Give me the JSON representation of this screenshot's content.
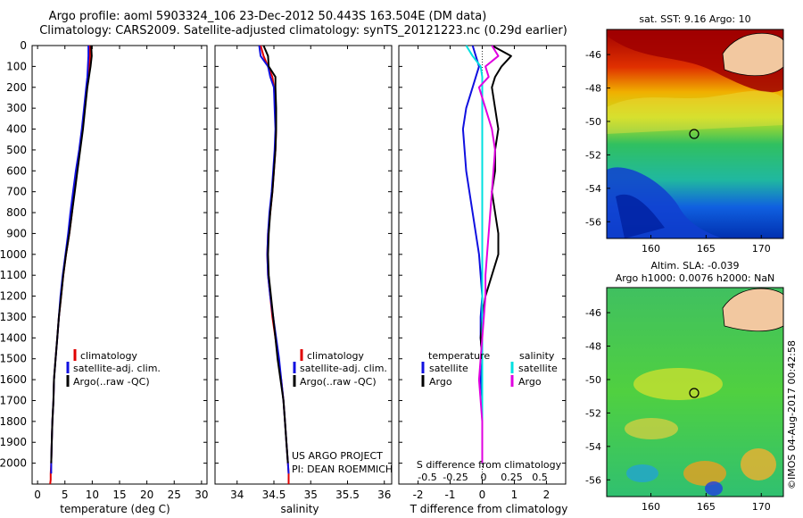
{
  "header": {
    "line1": "Argo profile: aoml 5903324_106 23-Dec-2012 50.443S 163.504E (DM data)",
    "line2": "Climatology: CARS2009. Satellite-adjusted climatology: synTS_20121223.nc (0.29d earlier)"
  },
  "colors": {
    "climatology": "#e00000",
    "satellite": "#1010e0",
    "argo": "#000000",
    "sal_satellite": "#00e0e0",
    "sal_argo": "#e000e0"
  },
  "chart_data": [
    {
      "id": "temperature",
      "type": "line",
      "xlabel": "temperature (deg C)",
      "ylabel": "",
      "xlim": [
        -1,
        31
      ],
      "ylim": [
        2100,
        0
      ],
      "xticks": [
        0,
        5,
        10,
        15,
        20,
        25,
        30
      ],
      "yticks": [
        0,
        100,
        200,
        300,
        400,
        500,
        600,
        700,
        800,
        900,
        1000,
        1100,
        1200,
        1300,
        1400,
        1500,
        1600,
        1700,
        1800,
        1900,
        2000
      ],
      "legend": [
        "climatology",
        "satellite-adj. clim.",
        "Argo(..raw -QC)"
      ],
      "series": [
        {
          "name": "climatology",
          "color": "#e00000",
          "x": [
            9.6,
            9.6,
            9.5,
            9.3,
            9.0,
            8.6,
            8.2,
            7.7,
            7.2,
            6.7,
            6.3,
            5.8,
            5.2,
            4.7,
            4.3,
            3.9,
            3.6,
            3.3,
            3.0,
            2.9,
            2.7,
            2.6,
            2.5,
            2.4,
            2.4,
            2.3
          ],
          "y": [
            0,
            50,
            100,
            150,
            200,
            300,
            400,
            500,
            600,
            700,
            800,
            900,
            1000,
            1100,
            1200,
            1300,
            1400,
            1500,
            1600,
            1700,
            1800,
            1900,
            2000,
            2050,
            2080,
            2100
          ]
        },
        {
          "name": "satellite-adj. clim.",
          "color": "#1010e0",
          "x": [
            9.3,
            9.3,
            9.2,
            9.1,
            8.9,
            8.5,
            8.1,
            7.6,
            7.0,
            6.5,
            6.0,
            5.6,
            5.1,
            4.6,
            4.2,
            3.9,
            3.6,
            3.3,
            3.0,
            2.9,
            2.7,
            2.6,
            2.5,
            2.5
          ],
          "y": [
            0,
            50,
            100,
            150,
            200,
            300,
            400,
            500,
            600,
            700,
            800,
            900,
            1000,
            1100,
            1200,
            1300,
            1400,
            1500,
            1600,
            1700,
            1800,
            1900,
            2000,
            2050
          ]
        },
        {
          "name": "Argo(..raw -QC)",
          "color": "#000000",
          "x": [
            9.8,
            9.9,
            9.7,
            9.4,
            9.1,
            8.7,
            8.3,
            7.8,
            7.3,
            6.8,
            6.3,
            5.8,
            5.2,
            4.7,
            4.3,
            3.9,
            3.6,
            3.3,
            3.0,
            2.9,
            2.7,
            2.6,
            2.5
          ],
          "y": [
            0,
            50,
            100,
            150,
            200,
            300,
            400,
            500,
            600,
            700,
            800,
            900,
            1000,
            1100,
            1200,
            1300,
            1400,
            1500,
            1600,
            1700,
            1800,
            1900,
            2000
          ]
        }
      ]
    },
    {
      "id": "salinity",
      "type": "line",
      "xlabel": "salinity",
      "ylabel": "",
      "xlim": [
        33.7,
        36.1
      ],
      "ylim": [
        2100,
        0
      ],
      "xticks": [
        34,
        34.5,
        35,
        35.5,
        36
      ],
      "legend": [
        "climatology",
        "satellite-adj. clim.",
        "Argo(..raw -QC)"
      ],
      "annotation": [
        "US ARGO PROJECT",
        "PI: DEAN ROEMMICH"
      ],
      "series": [
        {
          "name": "climatology",
          "color": "#e00000",
          "x": [
            34.32,
            34.36,
            34.42,
            34.48,
            34.5,
            34.52,
            34.53,
            34.52,
            34.5,
            34.48,
            34.45,
            34.42,
            34.41,
            34.42,
            34.45,
            34.48,
            34.52,
            34.56,
            34.6,
            34.63,
            34.65,
            34.67,
            34.69,
            34.7,
            34.7
          ],
          "y": [
            0,
            50,
            100,
            150,
            200,
            300,
            400,
            500,
            600,
            700,
            800,
            900,
            1000,
            1100,
            1200,
            1300,
            1400,
            1500,
            1600,
            1700,
            1800,
            1900,
            2000,
            2050,
            2100
          ]
        },
        {
          "name": "satellite-adj. clim.",
          "color": "#1010e0",
          "x": [
            34.3,
            34.32,
            34.42,
            34.45,
            34.5,
            34.51,
            34.52,
            34.51,
            34.49,
            34.47,
            34.44,
            34.42,
            34.41,
            34.42,
            34.45,
            34.49,
            34.53,
            34.57,
            34.6,
            34.63,
            34.65,
            34.67,
            34.69,
            34.7
          ],
          "y": [
            0,
            50,
            100,
            150,
            200,
            300,
            400,
            500,
            600,
            700,
            800,
            900,
            1000,
            1100,
            1200,
            1300,
            1400,
            1500,
            1600,
            1700,
            1800,
            1900,
            2000,
            2050
          ]
        },
        {
          "name": "Argo(..raw -QC)",
          "color": "#000000",
          "x": [
            34.36,
            34.42,
            34.43,
            34.52,
            34.52,
            34.53,
            34.53,
            34.52,
            34.5,
            34.48,
            34.45,
            34.43,
            34.42,
            34.43,
            34.46,
            34.49,
            34.52,
            34.55,
            34.59,
            34.63,
            34.65,
            34.67,
            34.69
          ],
          "y": [
            0,
            50,
            100,
            150,
            200,
            300,
            400,
            500,
            600,
            700,
            800,
            900,
            1000,
            1100,
            1200,
            1300,
            1400,
            1500,
            1600,
            1700,
            1800,
            1900,
            2000
          ]
        }
      ]
    },
    {
      "id": "difference",
      "type": "line",
      "xlabel": "T difference from climatology",
      "xlabel_top": "S difference from climatology",
      "xlim": [
        -2.6,
        2.6
      ],
      "ylim": [
        2100,
        0
      ],
      "xticks_t": [
        -2,
        -1,
        0,
        1,
        2
      ],
      "xticks_s": [
        "-0.5",
        "-0.25",
        "0",
        "0.25",
        "0.5"
      ],
      "legend_temperature": {
        "heading": "temperature",
        "items": [
          "satellite",
          "Argo"
        ]
      },
      "legend_salinity": {
        "heading": "salinity",
        "items": [
          "satellite",
          "Argo"
        ]
      },
      "series": [
        {
          "name": "satellite",
          "group": "temperature",
          "color": "#1010e0",
          "x": [
            -0.3,
            -0.2,
            -0.1,
            -0.2,
            -0.3,
            -0.5,
            -0.6,
            -0.55,
            -0.5,
            -0.4,
            -0.3,
            -0.2,
            -0.1,
            -0.05,
            0,
            -0.05,
            -0.05,
            0,
            -0.05,
            0,
            0,
            0,
            0
          ],
          "y": [
            0,
            50,
            100,
            150,
            200,
            300,
            400,
            500,
            600,
            700,
            800,
            900,
            1000,
            1100,
            1200,
            1300,
            1400,
            1500,
            1600,
            1700,
            1800,
            1900,
            2000
          ]
        },
        {
          "name": "Argo",
          "group": "temperature",
          "color": "#000000",
          "x": [
            0.3,
            0.9,
            0.6,
            0.4,
            0.3,
            0.4,
            0.5,
            0.4,
            0.4,
            0.3,
            0.4,
            0.5,
            0.5,
            0.3,
            0.1,
            0.0,
            -0.05,
            0.0,
            0.0,
            0.0,
            0.0,
            0.0,
            0.0
          ],
          "y": [
            0,
            50,
            100,
            150,
            200,
            300,
            400,
            500,
            600,
            700,
            800,
            900,
            1000,
            1100,
            1200,
            1300,
            1400,
            1500,
            1600,
            1700,
            1800,
            1900,
            2000
          ]
        },
        {
          "name": "satellite",
          "group": "salinity",
          "color": "#00e0e0",
          "x": [
            -0.5,
            -0.3,
            -0.05,
            0.0,
            0.0,
            0.0,
            0.0,
            0.0,
            0.0,
            0.0,
            0.0,
            0.0,
            0.0,
            0.0,
            0.0,
            0.0,
            0.0,
            0.0,
            0.0,
            0.0,
            0.0,
            0.0,
            0.0
          ],
          "y": [
            0,
            50,
            100,
            150,
            200,
            300,
            400,
            500,
            600,
            700,
            800,
            900,
            1000,
            1100,
            1200,
            1300,
            1400,
            1500,
            1600,
            1700,
            1800,
            1900,
            2000
          ]
        },
        {
          "name": "Argo",
          "group": "salinity",
          "color": "#e000e0",
          "x": [
            0.3,
            0.5,
            0.1,
            0.2,
            -0.1,
            0.1,
            0.3,
            0.4,
            0.35,
            0.3,
            0.25,
            0.2,
            0.15,
            0.1,
            0.1,
            0.05,
            0.0,
            -0.05,
            -0.1,
            -0.05,
            0,
            0,
            0
          ],
          "y": [
            0,
            50,
            100,
            150,
            200,
            300,
            400,
            500,
            600,
            700,
            800,
            900,
            1000,
            1100,
            1200,
            1300,
            1400,
            1500,
            1600,
            1700,
            1800,
            1900,
            2000
          ]
        }
      ]
    },
    {
      "id": "sst_map",
      "type": "heatmap",
      "title": "sat. SST: 9.16 Argo: 10",
      "xlim": [
        156,
        172
      ],
      "ylim": [
        -57,
        -44.5
      ],
      "xticks": [
        160,
        165,
        170
      ],
      "yticks": [
        -46,
        -48,
        -50,
        -52,
        -54,
        -56
      ],
      "argo_position": {
        "lon": 163.5,
        "lat": -50.44
      }
    },
    {
      "id": "sla_map",
      "type": "heatmap",
      "title": "Altim. SLA: -0.039",
      "subtitle": "Argo h1000: 0.0076 h2000: NaN",
      "xlim": [
        156,
        172
      ],
      "ylim": [
        -57,
        -44.5
      ],
      "xticks": [
        160,
        165,
        170
      ],
      "yticks": [
        -46,
        -48,
        -50,
        -52,
        -54,
        -56
      ],
      "argo_position": {
        "lon": 163.5,
        "lat": -50.44
      }
    }
  ],
  "footer": {
    "stamp": "©IMOS 04-Aug-2017 00:42:58"
  }
}
